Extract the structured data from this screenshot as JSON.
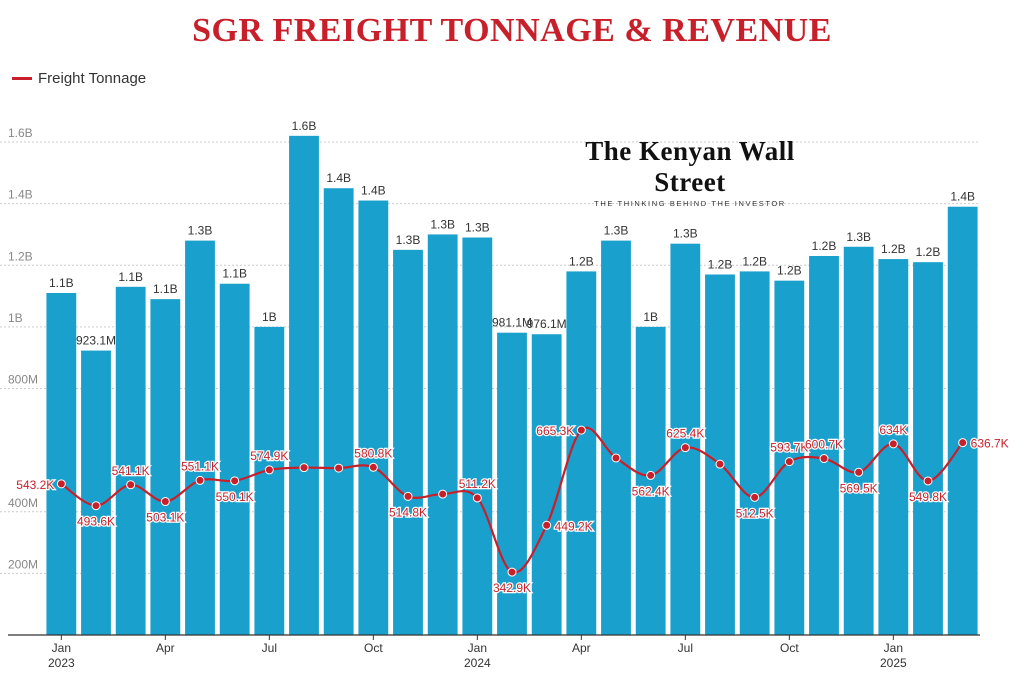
{
  "title": "SGR FREIGHT TONNAGE & REVENUE",
  "watermark": {
    "name": "The Kenyan Wall Street",
    "tagline": "THE THINKING BEHIND THE INVESTOR"
  },
  "legend": {
    "label": "Freight Tonnage",
    "color": "#c8202a"
  },
  "colors": {
    "bar": "#1aa0cc",
    "line": "#c8202a",
    "grid": "#cccccc",
    "axis": "#333333",
    "label": "#333333"
  },
  "chart_data": {
    "type": "bar+line",
    "title": "SGR FREIGHT TONNAGE & REVENUE",
    "categories": [
      "Jan 2023",
      "Feb 2023",
      "Mar 2023",
      "Apr 2023",
      "May 2023",
      "Jun 2023",
      "Jul 2023",
      "Aug 2023",
      "Sep 2023",
      "Oct 2023",
      "Nov 2023",
      "Dec 2023",
      "Jan 2024",
      "Feb 2024",
      "Mar 2024",
      "Apr 2024",
      "May 2024",
      "Jun 2024",
      "Jul 2024",
      "Aug 2024",
      "Sep 2024",
      "Oct 2024",
      "Nov 2024",
      "Dec 2024",
      "Jan 2025",
      "Feb 2025",
      "Mar 2025"
    ],
    "x_ticks": [
      {
        "index": 0,
        "month": "Jan",
        "year": "2023"
      },
      {
        "index": 3,
        "month": "Apr",
        "year": ""
      },
      {
        "index": 6,
        "month": "Jul",
        "year": ""
      },
      {
        "index": 9,
        "month": "Oct",
        "year": ""
      },
      {
        "index": 12,
        "month": "Jan",
        "year": "2024"
      },
      {
        "index": 15,
        "month": "Apr",
        "year": ""
      },
      {
        "index": 18,
        "month": "Jul",
        "year": ""
      },
      {
        "index": 21,
        "month": "Oct",
        "year": ""
      },
      {
        "index": 24,
        "month": "Jan",
        "year": "2025"
      }
    ],
    "y_axis": {
      "min": 0,
      "max": 1600000000,
      "ticks": [
        {
          "value": 200000000,
          "label": "200M"
        },
        {
          "value": 400000000,
          "label": "400M"
        },
        {
          "value": 800000000,
          "label": "800M"
        },
        {
          "value": 1000000000,
          "label": "1B"
        },
        {
          "value": 1200000000,
          "label": "1.2B"
        },
        {
          "value": 1400000000,
          "label": "1.4B"
        },
        {
          "value": 1600000000,
          "label": "1.6B"
        }
      ]
    },
    "series": [
      {
        "name": "Revenue",
        "type": "bar",
        "values": [
          1110000000,
          923100000,
          1130000000,
          1090000000,
          1280000000,
          1140000000,
          1000000000,
          1620000000,
          1450000000,
          1410000000,
          1250000000,
          1300000000,
          1290000000,
          981100000,
          976100000,
          1180000000,
          1280000000,
          1000000000,
          1270000000,
          1170000000,
          1180000000,
          1150000000,
          1230000000,
          1260000000,
          1220000000,
          1210000000,
          1390000000
        ],
        "labels": [
          "1.1B",
          "923.1M",
          "1.1B",
          "1.1B",
          "1.3B",
          "1.1B",
          "1B",
          "1.6B",
          "1.4B",
          "1.4B",
          "1.3B",
          "1.3B",
          "1.3B",
          "981.1M",
          "976.1M",
          "1.2B",
          "1.3B",
          "1B",
          "1.3B",
          "1.2B",
          "1.2B",
          "1.2B",
          "1.2B",
          "1.3B",
          "1.2B",
          "1.2B",
          "1.4B"
        ]
      },
      {
        "name": "Freight Tonnage",
        "type": "line",
        "y_range": [
          200000,
          720000
        ],
        "values": [
          543200,
          493600,
          541100,
          503100,
          551100,
          550100,
          574900,
          580000,
          579000,
          580800,
          514800,
          520000,
          511200,
          342900,
          449200,
          665300,
          602000,
          562400,
          625400,
          588000,
          512500,
          593700,
          600700,
          569500,
          634000,
          549800,
          636700
        ],
        "labels": [
          "543.2K",
          "493.6K",
          "541.1K",
          "503.1K",
          "551.1K",
          "550.1K",
          "574.9K",
          "",
          "",
          "580.8K",
          "514.8K",
          "",
          "511.2K",
          "342.9K",
          "449.2K",
          "665.3K",
          "",
          "562.4K",
          "625.4K",
          "",
          "512.5K",
          "593.7K",
          "600.7K",
          "569.5K",
          "634K",
          "549.8K",
          "636.7K"
        ],
        "label_pos": [
          "left",
          "below",
          "above",
          "below",
          "above",
          "below",
          "above",
          "",
          "",
          "above",
          "below",
          "",
          "above",
          "below",
          "right",
          "left",
          "",
          "below",
          "above",
          "",
          "below",
          "above",
          "above",
          "below",
          "above",
          "below",
          "right"
        ]
      }
    ]
  }
}
